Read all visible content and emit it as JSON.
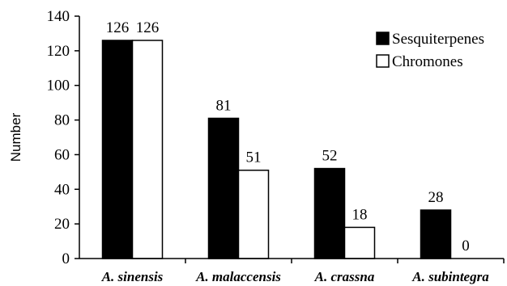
{
  "chart_data": {
    "type": "bar",
    "title": "",
    "xlabel": "",
    "ylabel": "Number",
    "ylim": [
      0,
      140
    ],
    "yticks": [
      0,
      20,
      40,
      60,
      80,
      100,
      120,
      140
    ],
    "grid": false,
    "legend_position": "top-right",
    "categories": [
      "A. sinensis",
      "A. malaccensis",
      "A. crassna",
      "A. subintegra"
    ],
    "series": [
      {
        "name": "Sesquiterpenes",
        "values": [
          126,
          81,
          52,
          28
        ],
        "color": "#000000"
      },
      {
        "name": "Chromones",
        "values": [
          126,
          51,
          18,
          0
        ],
        "color": "#ffffff"
      }
    ],
    "data_labels": [
      [
        "126",
        "81",
        "52",
        "28"
      ],
      [
        "126",
        "51",
        "18",
        "0"
      ]
    ]
  }
}
